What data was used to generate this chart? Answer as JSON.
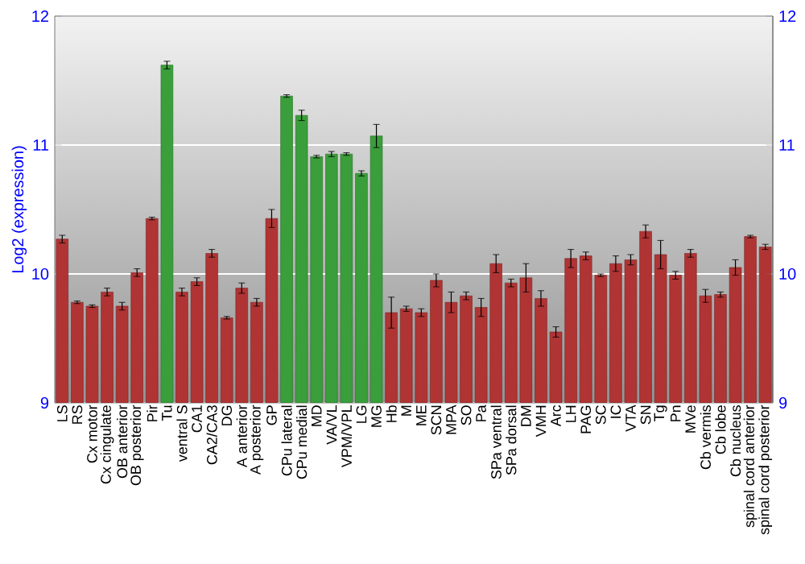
{
  "chart_data": {
    "type": "bar",
    "ylabel": "Log2 (expression)",
    "categories": [
      "LS",
      "RS",
      "Cx motor",
      "Cx cingulate",
      "OB anterior",
      "OB posterior",
      "Pir",
      "Tu",
      "ventral S",
      "CA1",
      "CA2/CA3",
      "DG",
      "A anterior",
      "A posterior",
      "GP",
      "CPu lateral",
      "CPu medial",
      "MD",
      "VA/VL",
      "VPM/VPL",
      "LG",
      "MG",
      "Hb",
      "M",
      "ME",
      "SCN",
      "MPA",
      "SO",
      "Pa",
      "SPa ventral",
      "SPa dorsal",
      "DM",
      "VMH",
      "Arc",
      "LH",
      "PAG",
      "SC",
      "IC",
      "VTA",
      "SN",
      "Tg",
      "Pn",
      "MVe",
      "Cb vermis",
      "Cb lobe",
      "Cb nucleus",
      "spinal cord anterior",
      "spinal cord posterior"
    ],
    "values": [
      10.27,
      9.78,
      9.75,
      9.86,
      9.75,
      10.01,
      10.43,
      11.62,
      9.86,
      9.94,
      10.16,
      9.66,
      9.89,
      9.78,
      10.43,
      11.38,
      11.23,
      10.91,
      10.93,
      10.93,
      10.78,
      11.07,
      9.7,
      9.73,
      9.7,
      9.95,
      9.78,
      9.83,
      9.74,
      10.08,
      9.93,
      9.97,
      9.81,
      9.55,
      10.12,
      10.14,
      9.99,
      10.08,
      10.11,
      10.33,
      10.15,
      9.99,
      10.16,
      9.83,
      9.84,
      10.05,
      10.29,
      10.21
    ],
    "errors": [
      0.03,
      0.01,
      0.01,
      0.03,
      0.03,
      0.03,
      0.01,
      0.03,
      0.03,
      0.03,
      0.03,
      0.01,
      0.04,
      0.03,
      0.07,
      0.01,
      0.04,
      0.01,
      0.02,
      0.01,
      0.02,
      0.09,
      0.12,
      0.02,
      0.03,
      0.05,
      0.08,
      0.03,
      0.07,
      0.07,
      0.03,
      0.11,
      0.06,
      0.04,
      0.07,
      0.03,
      0.01,
      0.06,
      0.04,
      0.05,
      0.11,
      0.03,
      0.03,
      0.05,
      0.02,
      0.06,
      0.01,
      0.02
    ],
    "colors": [
      "#b03434",
      "#b03434",
      "#b03434",
      "#b03434",
      "#b03434",
      "#b03434",
      "#b03434",
      "#3a9e3a",
      "#b03434",
      "#b03434",
      "#b03434",
      "#b03434",
      "#b03434",
      "#b03434",
      "#b03434",
      "#3a9e3a",
      "#3a9e3a",
      "#3a9e3a",
      "#3a9e3a",
      "#3a9e3a",
      "#3a9e3a",
      "#3a9e3a",
      "#b03434",
      "#b03434",
      "#b03434",
      "#b03434",
      "#b03434",
      "#b03434",
      "#b03434",
      "#b03434",
      "#b03434",
      "#b03434",
      "#b03434",
      "#b03434",
      "#b03434",
      "#b03434",
      "#b03434",
      "#b03434",
      "#b03434",
      "#b03434",
      "#b03434",
      "#b03434",
      "#b03434",
      "#b03434",
      "#b03434",
      "#b03434",
      "#b03434",
      "#b03434"
    ],
    "ylim": [
      9,
      12
    ],
    "yticks": [
      9,
      10,
      11,
      12
    ],
    "y2lim": [
      9,
      12
    ],
    "y2ticks": [
      9,
      10,
      11,
      12
    ],
    "grid": "y"
  }
}
